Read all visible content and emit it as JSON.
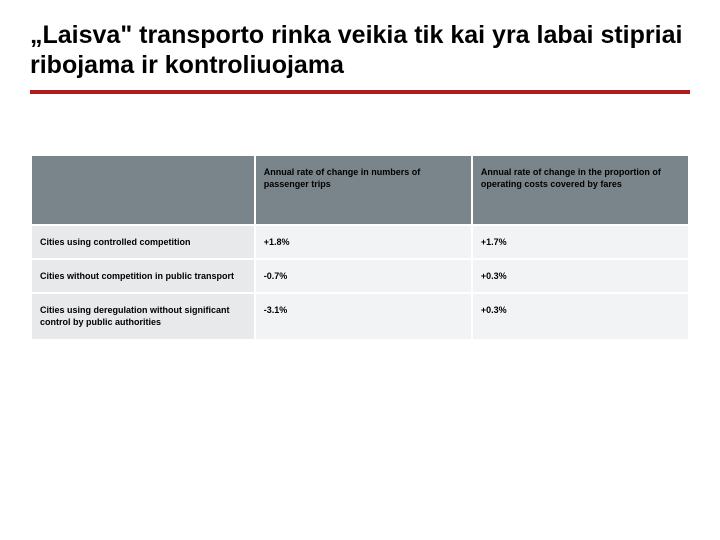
{
  "title": "„Laisva\" transporto rinka veikia tik kai yra labai stipriai ribojama ir kontroliuojama",
  "rule_color": "#b01b1b",
  "table": {
    "header_bg": "#79858b",
    "rowhead_bg": "#e7e9eb",
    "cell_bg": "#f2f3f4",
    "border_color": "#ffffff",
    "columns": [
      "",
      "Annual rate of change in numbers of passenger trips",
      "Annual rate of change in the proportion of operating costs covered by fares"
    ],
    "rows": [
      {
        "label": "Cities using controlled competition",
        "c1": "+1.8%",
        "c2": "+1.7%"
      },
      {
        "label": "Cities without competition in public transport",
        "c1": "-0.7%",
        "c2": "+0.3%"
      },
      {
        "label": "Cities using deregulation without significant control by public authorities",
        "c1": "-3.1%",
        "c2": "+0.3%"
      }
    ]
  }
}
